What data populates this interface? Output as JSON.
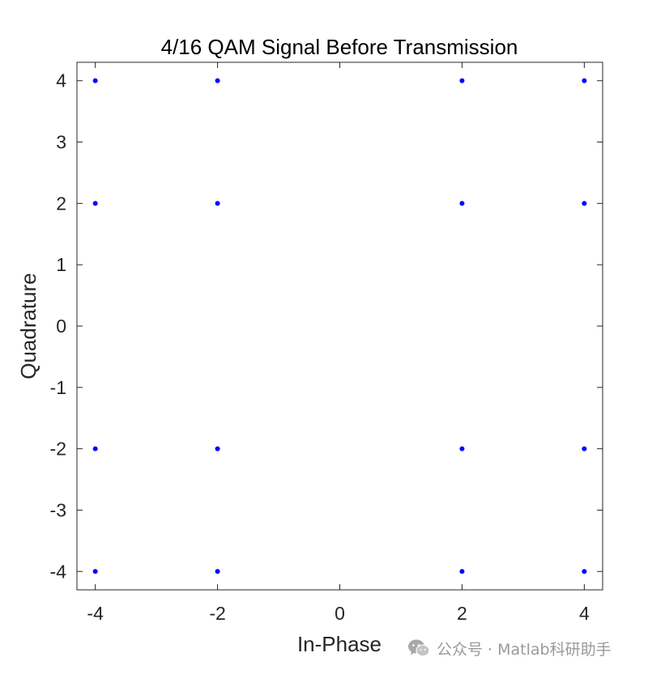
{
  "chart_data": {
    "type": "scatter",
    "title": "4/16 QAM Signal Before Transmission",
    "xlabel": "In-Phase",
    "ylabel": "Quadrature",
    "xlim": [
      -4.3,
      4.3
    ],
    "ylim": [
      -4.3,
      4.3
    ],
    "xticks": [
      -4,
      -2,
      0,
      2,
      4
    ],
    "xtick_labels": [
      "-4",
      "-2",
      "0",
      "2",
      "4"
    ],
    "yticks": [
      -4,
      -3,
      -2,
      -1,
      0,
      1,
      2,
      3,
      4
    ],
    "ytick_labels": [
      "-4",
      "-3",
      "-2",
      "-1",
      "0",
      "1",
      "2",
      "3",
      "4"
    ],
    "grid": false,
    "box": true,
    "marker_color": "#0000ff",
    "points": [
      {
        "x": -4,
        "y": 4
      },
      {
        "x": -2,
        "y": 4
      },
      {
        "x": 2,
        "y": 4
      },
      {
        "x": 4,
        "y": 4
      },
      {
        "x": -4,
        "y": 2
      },
      {
        "x": -2,
        "y": 2
      },
      {
        "x": 2,
        "y": 2
      },
      {
        "x": 4,
        "y": 2
      },
      {
        "x": -4,
        "y": -2
      },
      {
        "x": -2,
        "y": -2
      },
      {
        "x": 2,
        "y": -2
      },
      {
        "x": 4,
        "y": -2
      },
      {
        "x": -4,
        "y": -4
      },
      {
        "x": -2,
        "y": -4
      },
      {
        "x": 2,
        "y": -4
      },
      {
        "x": 4,
        "y": -4
      }
    ]
  },
  "watermark": {
    "text": "公众号 · Matlab科研助手",
    "icon": "wechat-icon"
  }
}
